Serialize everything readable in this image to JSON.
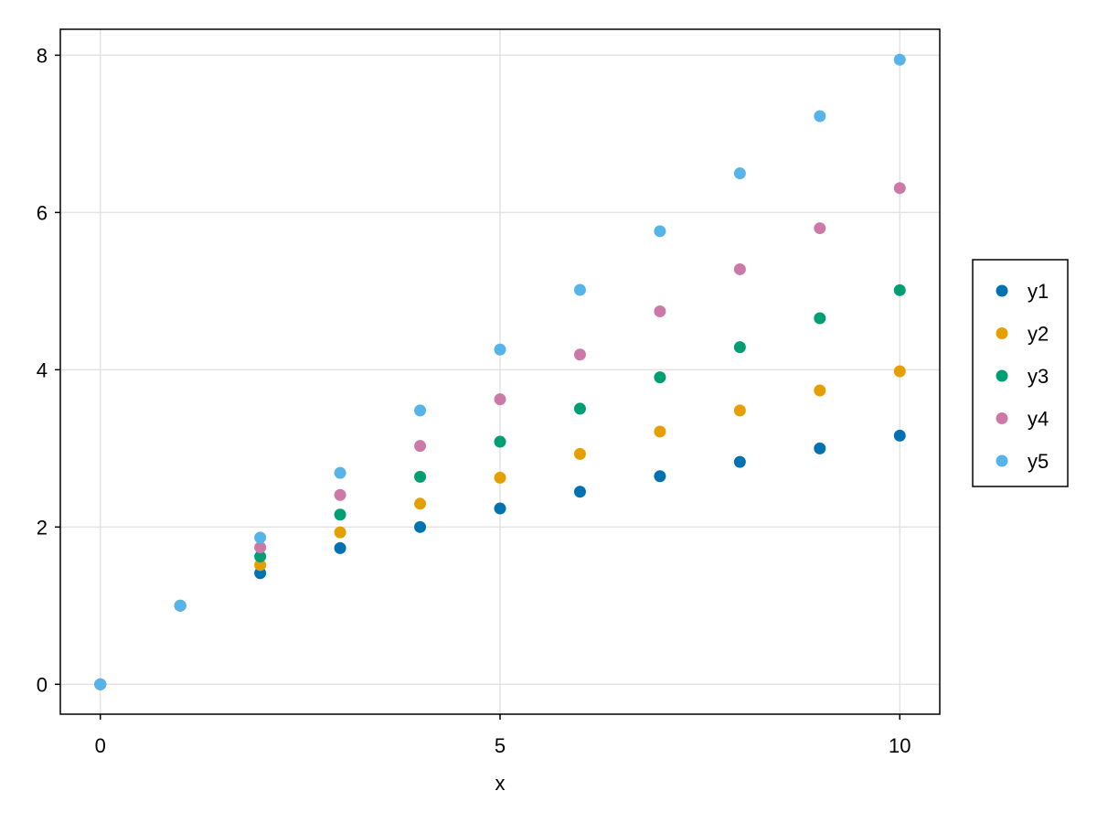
{
  "chart_data": {
    "type": "scatter",
    "title": "",
    "xlabel": "x",
    "ylabel": "",
    "xlim": [
      -0.5,
      10.5
    ],
    "ylim": [
      -0.38,
      8.33
    ],
    "xticks": [
      0,
      5,
      10
    ],
    "yticks": [
      0,
      2,
      4,
      6,
      8
    ],
    "xtick_labels": [
      "0",
      "5",
      "10"
    ],
    "ytick_labels": [
      "0",
      "2",
      "4",
      "6",
      "8"
    ],
    "grid": true,
    "legend_position": "right",
    "x": [
      0,
      1,
      2,
      3,
      4,
      5,
      6,
      7,
      8,
      9,
      10
    ],
    "series": [
      {
        "name": "y1",
        "color": "#0072b2",
        "values": [
          0,
          1,
          1.414,
          1.732,
          2.0,
          2.236,
          2.449,
          2.646,
          2.828,
          3.0,
          3.162
        ]
      },
      {
        "name": "y2",
        "color": "#e69f00",
        "values": [
          0,
          1,
          1.516,
          1.933,
          2.297,
          2.627,
          2.93,
          3.214,
          3.482,
          3.737,
          3.981
        ]
      },
      {
        "name": "y3",
        "color": "#009e73",
        "values": [
          0,
          1,
          1.625,
          2.158,
          2.639,
          3.085,
          3.505,
          3.904,
          4.287,
          4.655,
          5.012
        ]
      },
      {
        "name": "y4",
        "color": "#cc79a7",
        "values": [
          0,
          1,
          1.741,
          2.408,
          3.031,
          3.624,
          4.193,
          4.743,
          5.278,
          5.8,
          6.31
        ]
      },
      {
        "name": "y5",
        "color": "#56b4e9",
        "values": [
          0,
          1,
          1.866,
          2.688,
          3.482,
          4.257,
          5.016,
          5.762,
          6.498,
          7.225,
          7.943
        ]
      }
    ]
  }
}
